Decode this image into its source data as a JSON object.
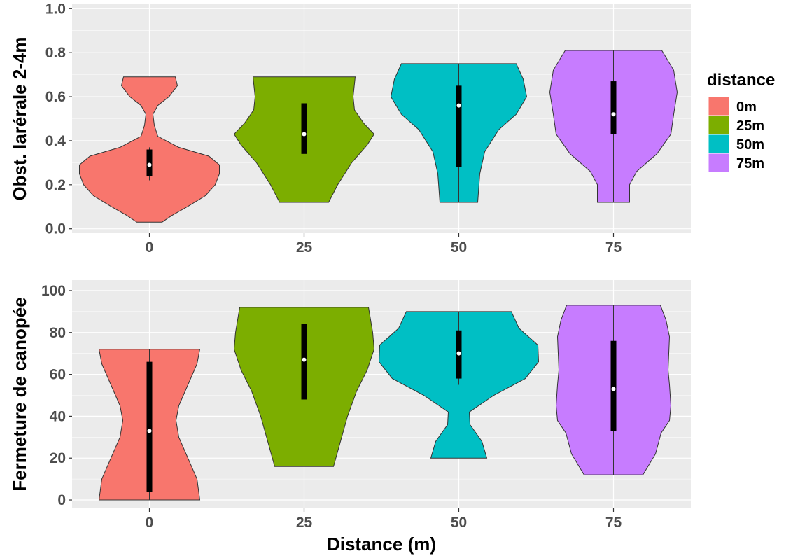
{
  "chart_data": [
    {
      "type": "violin",
      "ylabel": "Obst. larérale 2-4m",
      "xlabel": "",
      "categories": [
        "0",
        "25",
        "50",
        "75"
      ],
      "ylim": [
        -0.02,
        1.02
      ],
      "yticks": [
        0.0,
        0.2,
        0.4,
        0.6,
        0.8,
        1.0
      ],
      "ytick_labels": [
        "0.0",
        "0.2",
        "0.4",
        "0.6",
        "0.8",
        "1.0"
      ],
      "grid": true,
      "series": [
        {
          "name": "0m",
          "min": 0.03,
          "max": 0.69,
          "q1": 0.24,
          "q3": 0.36,
          "median": 0.29,
          "whisker_low": 0.22,
          "whisker_high": 0.37,
          "density": [
            [
              0.03,
              0.18
            ],
            [
              0.06,
              0.32
            ],
            [
              0.1,
              0.54
            ],
            [
              0.15,
              0.8
            ],
            [
              0.2,
              0.94
            ],
            [
              0.25,
              1.0
            ],
            [
              0.29,
              1.0
            ],
            [
              0.33,
              0.85
            ],
            [
              0.37,
              0.42
            ],
            [
              0.42,
              0.12
            ],
            [
              0.47,
              0.07
            ],
            [
              0.52,
              0.05
            ],
            [
              0.56,
              0.12
            ],
            [
              0.6,
              0.28
            ],
            [
              0.65,
              0.4
            ],
            [
              0.69,
              0.37
            ]
          ]
        },
        {
          "name": "25m",
          "min": 0.12,
          "max": 0.69,
          "q1": 0.34,
          "q3": 0.57,
          "median": 0.43,
          "whisker_low": 0.12,
          "whisker_high": 0.69,
          "density": [
            [
              0.12,
              0.35
            ],
            [
              0.2,
              0.48
            ],
            [
              0.3,
              0.68
            ],
            [
              0.38,
              0.9
            ],
            [
              0.43,
              1.0
            ],
            [
              0.48,
              0.85
            ],
            [
              0.54,
              0.72
            ],
            [
              0.6,
              0.7
            ],
            [
              0.69,
              0.73
            ]
          ]
        },
        {
          "name": "50m",
          "min": 0.12,
          "max": 0.75,
          "q1": 0.28,
          "q3": 0.65,
          "median": 0.56,
          "whisker_low": 0.12,
          "whisker_high": 0.75,
          "density": [
            [
              0.12,
              0.27
            ],
            [
              0.25,
              0.3
            ],
            [
              0.35,
              0.37
            ],
            [
              0.45,
              0.57
            ],
            [
              0.52,
              0.82
            ],
            [
              0.6,
              0.97
            ],
            [
              0.68,
              0.92
            ],
            [
              0.75,
              0.82
            ]
          ]
        },
        {
          "name": "75m",
          "min": 0.12,
          "max": 0.81,
          "q1": 0.43,
          "q3": 0.67,
          "median": 0.52,
          "whisker_low": 0.12,
          "whisker_high": 0.81,
          "density": [
            [
              0.12,
              0.23
            ],
            [
              0.2,
              0.23
            ],
            [
              0.26,
              0.33
            ],
            [
              0.34,
              0.62
            ],
            [
              0.43,
              0.82
            ],
            [
              0.52,
              0.86
            ],
            [
              0.62,
              0.91
            ],
            [
              0.72,
              0.86
            ],
            [
              0.81,
              0.69
            ]
          ]
        }
      ]
    },
    {
      "type": "violin",
      "ylabel": "Fermeture de canopée",
      "xlabel": "Distance (m)",
      "categories": [
        "0",
        "25",
        "50",
        "75"
      ],
      "ylim": [
        -4,
        105
      ],
      "yticks": [
        0,
        20,
        40,
        60,
        80,
        100
      ],
      "ytick_labels": [
        "0",
        "20",
        "40",
        "60",
        "80",
        "100"
      ],
      "grid": true,
      "series": [
        {
          "name": "0m",
          "min": 0,
          "max": 72,
          "q1": 4,
          "q3": 66,
          "median": 33,
          "whisker_low": 0,
          "whisker_high": 72,
          "density": [
            [
              0,
              0.72
            ],
            [
              10,
              0.68
            ],
            [
              20,
              0.55
            ],
            [
              30,
              0.42
            ],
            [
              38,
              0.38
            ],
            [
              45,
              0.42
            ],
            [
              55,
              0.55
            ],
            [
              65,
              0.68
            ],
            [
              72,
              0.72
            ]
          ]
        },
        {
          "name": "25m",
          "min": 16,
          "max": 92,
          "q1": 48,
          "q3": 84,
          "median": 67,
          "whisker_low": 16,
          "whisker_high": 92,
          "density": [
            [
              16,
              0.42
            ],
            [
              28,
              0.52
            ],
            [
              40,
              0.62
            ],
            [
              52,
              0.75
            ],
            [
              62,
              0.9
            ],
            [
              72,
              1.0
            ],
            [
              80,
              0.98
            ],
            [
              86,
              0.95
            ],
            [
              92,
              0.92
            ]
          ]
        },
        {
          "name": "50m",
          "min": 20,
          "max": 90,
          "q1": 58,
          "q3": 81,
          "median": 70,
          "whisker_low": 55,
          "whisker_high": 90,
          "density": [
            [
              20,
              0.4
            ],
            [
              28,
              0.33
            ],
            [
              36,
              0.16
            ],
            [
              42,
              0.15
            ],
            [
              50,
              0.5
            ],
            [
              58,
              0.95
            ],
            [
              66,
              1.14
            ],
            [
              74,
              1.13
            ],
            [
              82,
              0.86
            ],
            [
              90,
              0.75
            ]
          ]
        },
        {
          "name": "75m",
          "min": 12,
          "max": 93,
          "q1": 33,
          "q3": 76,
          "median": 53,
          "whisker_low": 12,
          "whisker_high": 93,
          "density": [
            [
              12,
              0.42
            ],
            [
              22,
              0.6
            ],
            [
              32,
              0.68
            ],
            [
              38,
              0.8
            ],
            [
              45,
              0.82
            ],
            [
              55,
              0.8
            ],
            [
              62,
              0.78
            ],
            [
              70,
              0.79
            ],
            [
              78,
              0.8
            ],
            [
              86,
              0.75
            ],
            [
              93,
              0.67
            ]
          ]
        }
      ]
    }
  ],
  "legend": {
    "title": "distance",
    "items": [
      {
        "label": "0m",
        "color": "#F8766D"
      },
      {
        "label": "25m",
        "color": "#7CAE00"
      },
      {
        "label": "50m",
        "color": "#00BFC4"
      },
      {
        "label": "75m",
        "color": "#C77CFF"
      }
    ]
  },
  "colors": {
    "panel_bg": "#EBEBEB",
    "grid_major": "#FFFFFF",
    "box": "#000000",
    "median_point": "#FFFFFF"
  }
}
